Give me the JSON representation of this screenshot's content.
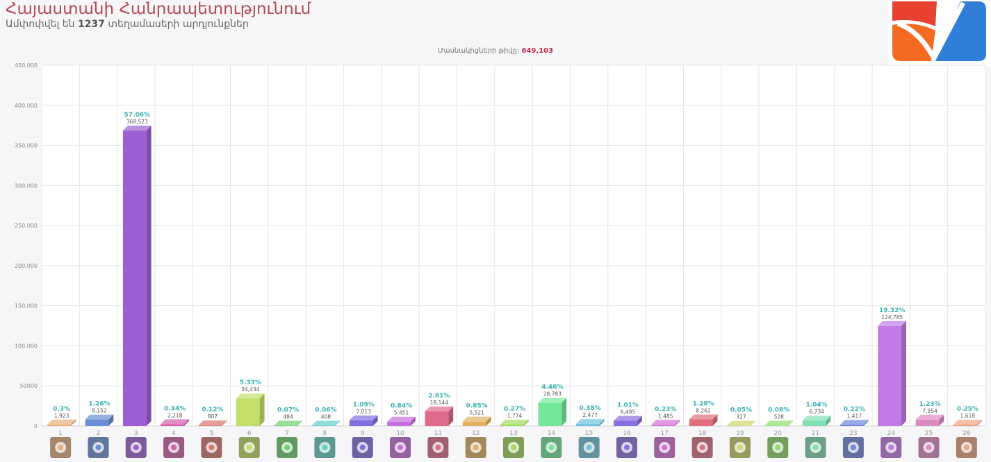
{
  "header": {
    "title": "Հայաստանի Հանրապետությունում",
    "subtitle_prefix": "Ամփոփվել են",
    "subtitle_count": "1237",
    "subtitle_suffix": "տեղամասերի արդյունքներ"
  },
  "participants": {
    "label": "Մասնակիցների թիվը:",
    "value": "649,103"
  },
  "brand": {
    "icon": "check-logo-icon",
    "colors": [
      "#e8412f",
      "#f36b21",
      "#2f7fd8"
    ]
  },
  "chart_data": {
    "type": "bar",
    "ylim": [
      0,
      450000
    ],
    "yticks": [
      "0",
      "50000",
      "100,000",
      "150,000",
      "200,000",
      "250,000",
      "300,000",
      "350,000",
      "400,000",
      "450,000"
    ],
    "grid": true,
    "categories": [
      "1",
      "2",
      "3",
      "4",
      "5",
      "6",
      "7",
      "8",
      "9",
      "10",
      "11",
      "12",
      "13",
      "14",
      "15",
      "16",
      "17",
      "18",
      "19",
      "20",
      "21",
      "23",
      "24",
      "25",
      "26"
    ],
    "values": [
      1923,
      8152,
      368523,
      2218,
      807,
      34434,
      484,
      408,
      7013,
      5451,
      18144,
      5521,
      1774,
      28783,
      2477,
      6495,
      1485,
      8262,
      327,
      528,
      6734,
      1417,
      124785,
      7954,
      1618
    ],
    "value_labels": [
      "1,923",
      "8,152",
      "368,523",
      "2,218",
      "807",
      "34,434",
      "484",
      "408",
      "7,013",
      "5,451",
      "18,144",
      "5,521",
      "1,774",
      "28,783",
      "2,477",
      "6,495",
      "1,485",
      "8,262",
      "327",
      "528",
      "6,734",
      "1,417",
      "124,785",
      "7,954",
      "1,618"
    ],
    "percent_labels": [
      "0.3%",
      "1.26%",
      "57.06%",
      "0.34%",
      "0.12%",
      "5.33%",
      "0.07%",
      "0.06%",
      "1.09%",
      "0.84%",
      "2.81%",
      "0.85%",
      "0.27%",
      "4.46%",
      "0.38%",
      "1.01%",
      "0.23%",
      "1.28%",
      "0.05%",
      "0.08%",
      "1.04%",
      "0.22%",
      "19.32%",
      "1.23%",
      "0.25%"
    ],
    "colors": [
      "#e9b07c",
      "#6b8fd6",
      "#9f5fd4",
      "#d45faa",
      "#d9776b",
      "#c2e066",
      "#6ed36e",
      "#5fd0c8",
      "#7f6fe0",
      "#c96ee0",
      "#e06a8c",
      "#e0b25f",
      "#a3dc5c",
      "#74e89a",
      "#6fc4dc",
      "#8a6fe0",
      "#d66fd6",
      "#e0707c",
      "#d0d66a",
      "#8fdc6a",
      "#7fe0b2",
      "#6f86e0",
      "#c27ae6",
      "#e08ac4",
      "#f0a57e"
    ],
    "logo_icons": [
      "orange-square-logo-icon",
      "swirl-logo-icon",
      "navy-square-logo-icon",
      "crest-logo-icon",
      "stripes-logo-icon",
      "star-wordmark-logo-icon",
      "wordmark-logo-icon",
      "emblem-logo-icon",
      "purple-square-logo-icon",
      "mountain-wordmark-logo-icon",
      "ornament-logo-icon",
      "gear-logo-icon",
      "banner-logo-icon",
      "wave-logo-icon",
      "figure-logo-icon",
      "navy-text-logo-icon",
      "green-badge-logo-icon",
      "line-logo-icon",
      "dark-square-logo-icon",
      "circle-logo-icon",
      "bird-logo-icon",
      "flag-logo-icon",
      "text-arrow-logo-icon",
      "red-figure-logo-icon",
      "gold-v-logo-icon"
    ]
  }
}
